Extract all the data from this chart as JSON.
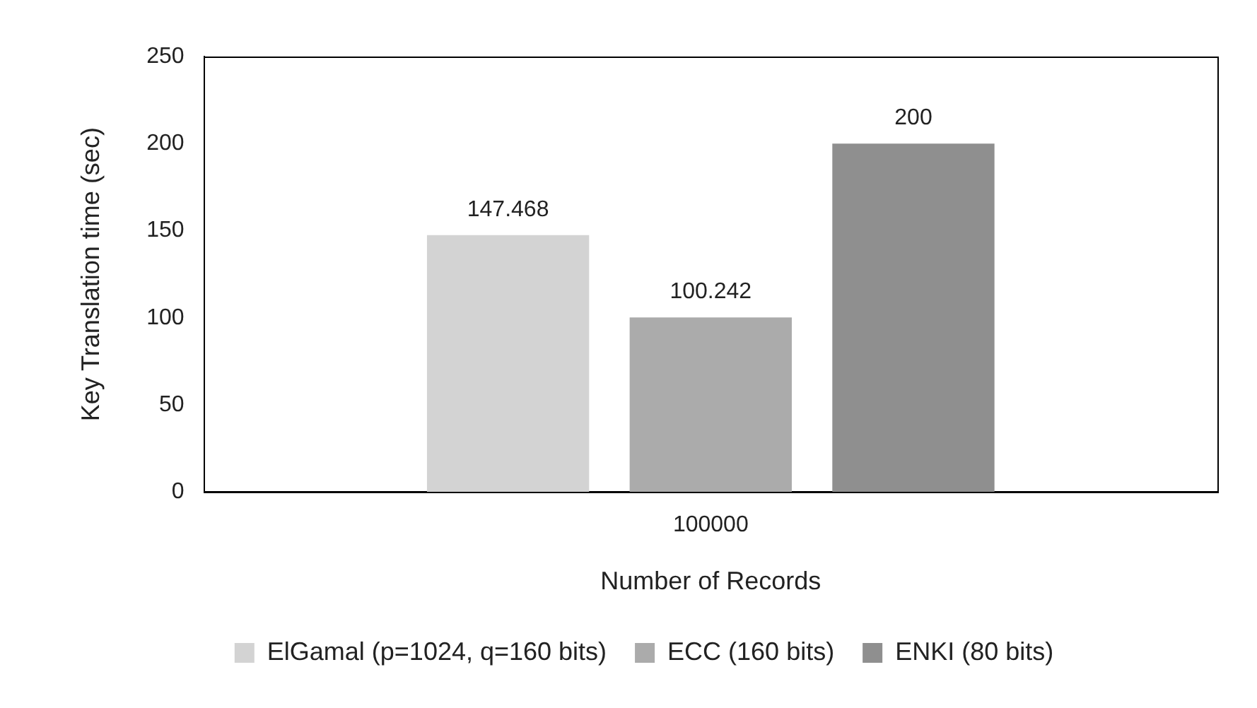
{
  "chart_data": {
    "type": "bar",
    "xlabel": "Number of Records",
    "ylabel": "Key Translation time (sec)",
    "categories": [
      "100000"
    ],
    "series": [
      {
        "name": "ElGamal (p=1024, q=160 bits)",
        "color": "#d3d3d3",
        "values": [
          147.468
        ]
      },
      {
        "name": "ECC (160 bits)",
        "color": "#ababab",
        "values": [
          100.242
        ]
      },
      {
        "name": "ENKI (80 bits)",
        "color": "#8f8f8f",
        "values": [
          200
        ]
      }
    ],
    "ylim": [
      0,
      250
    ],
    "yticks": [
      0,
      50,
      100,
      150,
      200,
      250
    ],
    "grid": false,
    "legend": "bottom",
    "data_labels": true
  }
}
